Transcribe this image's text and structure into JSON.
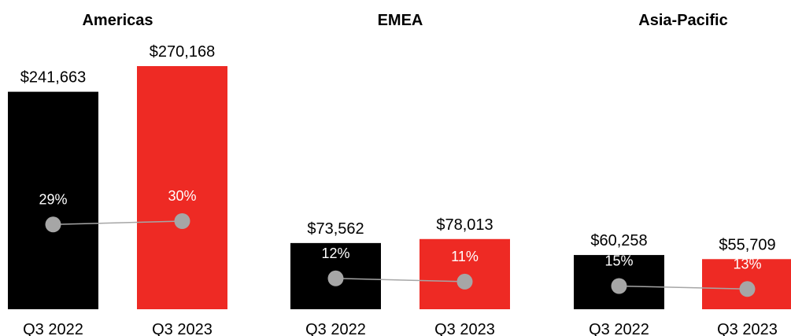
{
  "chart_data": [
    {
      "type": "bar",
      "title": "Americas",
      "categories": [
        "Q3 2022",
        "Q3 2023"
      ],
      "values": [
        241663,
        270168
      ],
      "value_labels": [
        "$241,663",
        "$270,168"
      ],
      "margin_values": [
        29,
        30
      ],
      "margin_labels": [
        "29%",
        "30%"
      ]
    },
    {
      "type": "bar",
      "title": "EMEA",
      "categories": [
        "Q3 2022",
        "Q3 2023"
      ],
      "values": [
        73562,
        78013
      ],
      "value_labels": [
        "$73,562",
        "$78,013"
      ],
      "margin_values": [
        12,
        11
      ],
      "margin_labels": [
        "12%",
        "11%"
      ]
    },
    {
      "type": "bar",
      "title": "Asia-Pacific",
      "categories": [
        "Q3 2022",
        "Q3 2023"
      ],
      "values": [
        60258,
        55709
      ],
      "value_labels": [
        "$60,258",
        "$55,709"
      ],
      "margin_values": [
        15,
        13
      ],
      "margin_labels": [
        "15%",
        "13%"
      ]
    }
  ],
  "colors": {
    "q3_2022": "#000000",
    "q3_2023": "#ee2a24",
    "marker": "#a6a6a6",
    "connector": "#a6a6a6"
  }
}
